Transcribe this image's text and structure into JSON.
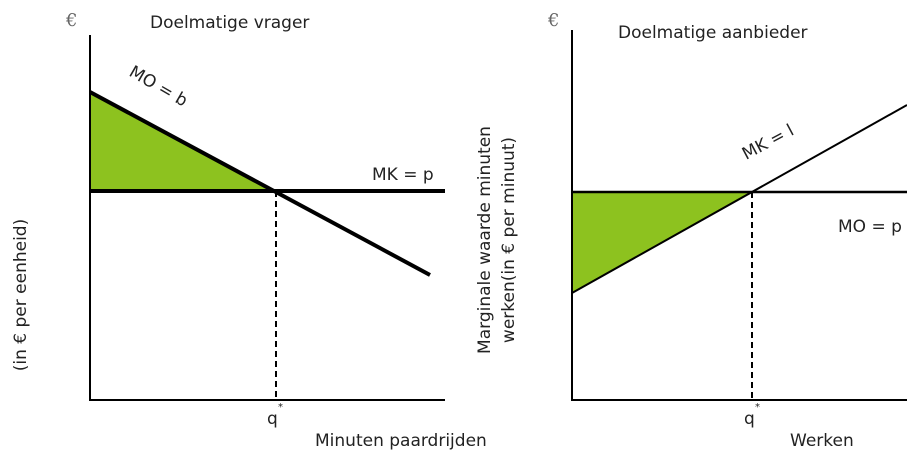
{
  "left": {
    "currency": "€",
    "title": "Doelmatige vrager",
    "demand_label": "MO = b",
    "cost_label": "MK = p",
    "q_label": {
      "base": "q",
      "sup": "*"
    },
    "x_axis_label": "Minuten paardrijden",
    "y_axis_label": "(in € per eenheid)"
  },
  "right": {
    "currency": "€",
    "title": "Doelmatige aanbieder",
    "cost_label": "MK = l",
    "benefit_label": "MO = p",
    "q_label": {
      "base": "q",
      "sup": "*"
    },
    "x_axis_label": "Werken",
    "y_axis_label": [
      "Marginale waarde minuten",
      "werken(in € per minuut)"
    ]
  }
}
